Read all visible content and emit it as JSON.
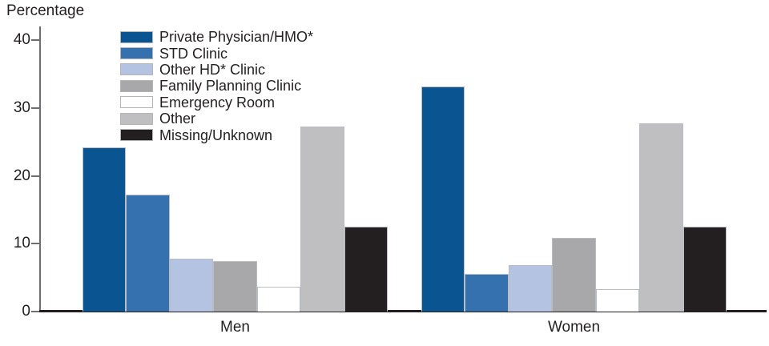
{
  "chart_data": {
    "type": "bar",
    "title": "Percentage",
    "xlabel": "",
    "ylabel": "Percentage",
    "categories": [
      "Men",
      "Women"
    ],
    "y_ticks": [
      0,
      10,
      20,
      30,
      40
    ],
    "ylim": [
      0,
      40
    ],
    "grid": false,
    "legend_position": "top-left-inside",
    "series": [
      {
        "name": "Private Physician/HMO*",
        "color": "#0A5591",
        "values": [
          24.2,
          33.2
        ]
      },
      {
        "name": "STD Clinic",
        "color": "#3571AE",
        "values": [
          17.2,
          5.5
        ]
      },
      {
        "name": "Other HD* Clinic",
        "color": "#B5C3E2",
        "values": [
          7.8,
          6.9
        ]
      },
      {
        "name": "Family Planning Clinic",
        "color": "#A8A8AB",
        "values": [
          7.4,
          10.8
        ]
      },
      {
        "name": "Emergency Room",
        "color": "#FFFFFF",
        "values": [
          3.6,
          3.3
        ]
      },
      {
        "name": "Other",
        "color": "#BFBFC2",
        "values": [
          27.2,
          27.7
        ]
      },
      {
        "name": "Missing/Unknown",
        "color": "#231F20",
        "values": [
          12.5,
          12.5
        ]
      }
    ]
  }
}
